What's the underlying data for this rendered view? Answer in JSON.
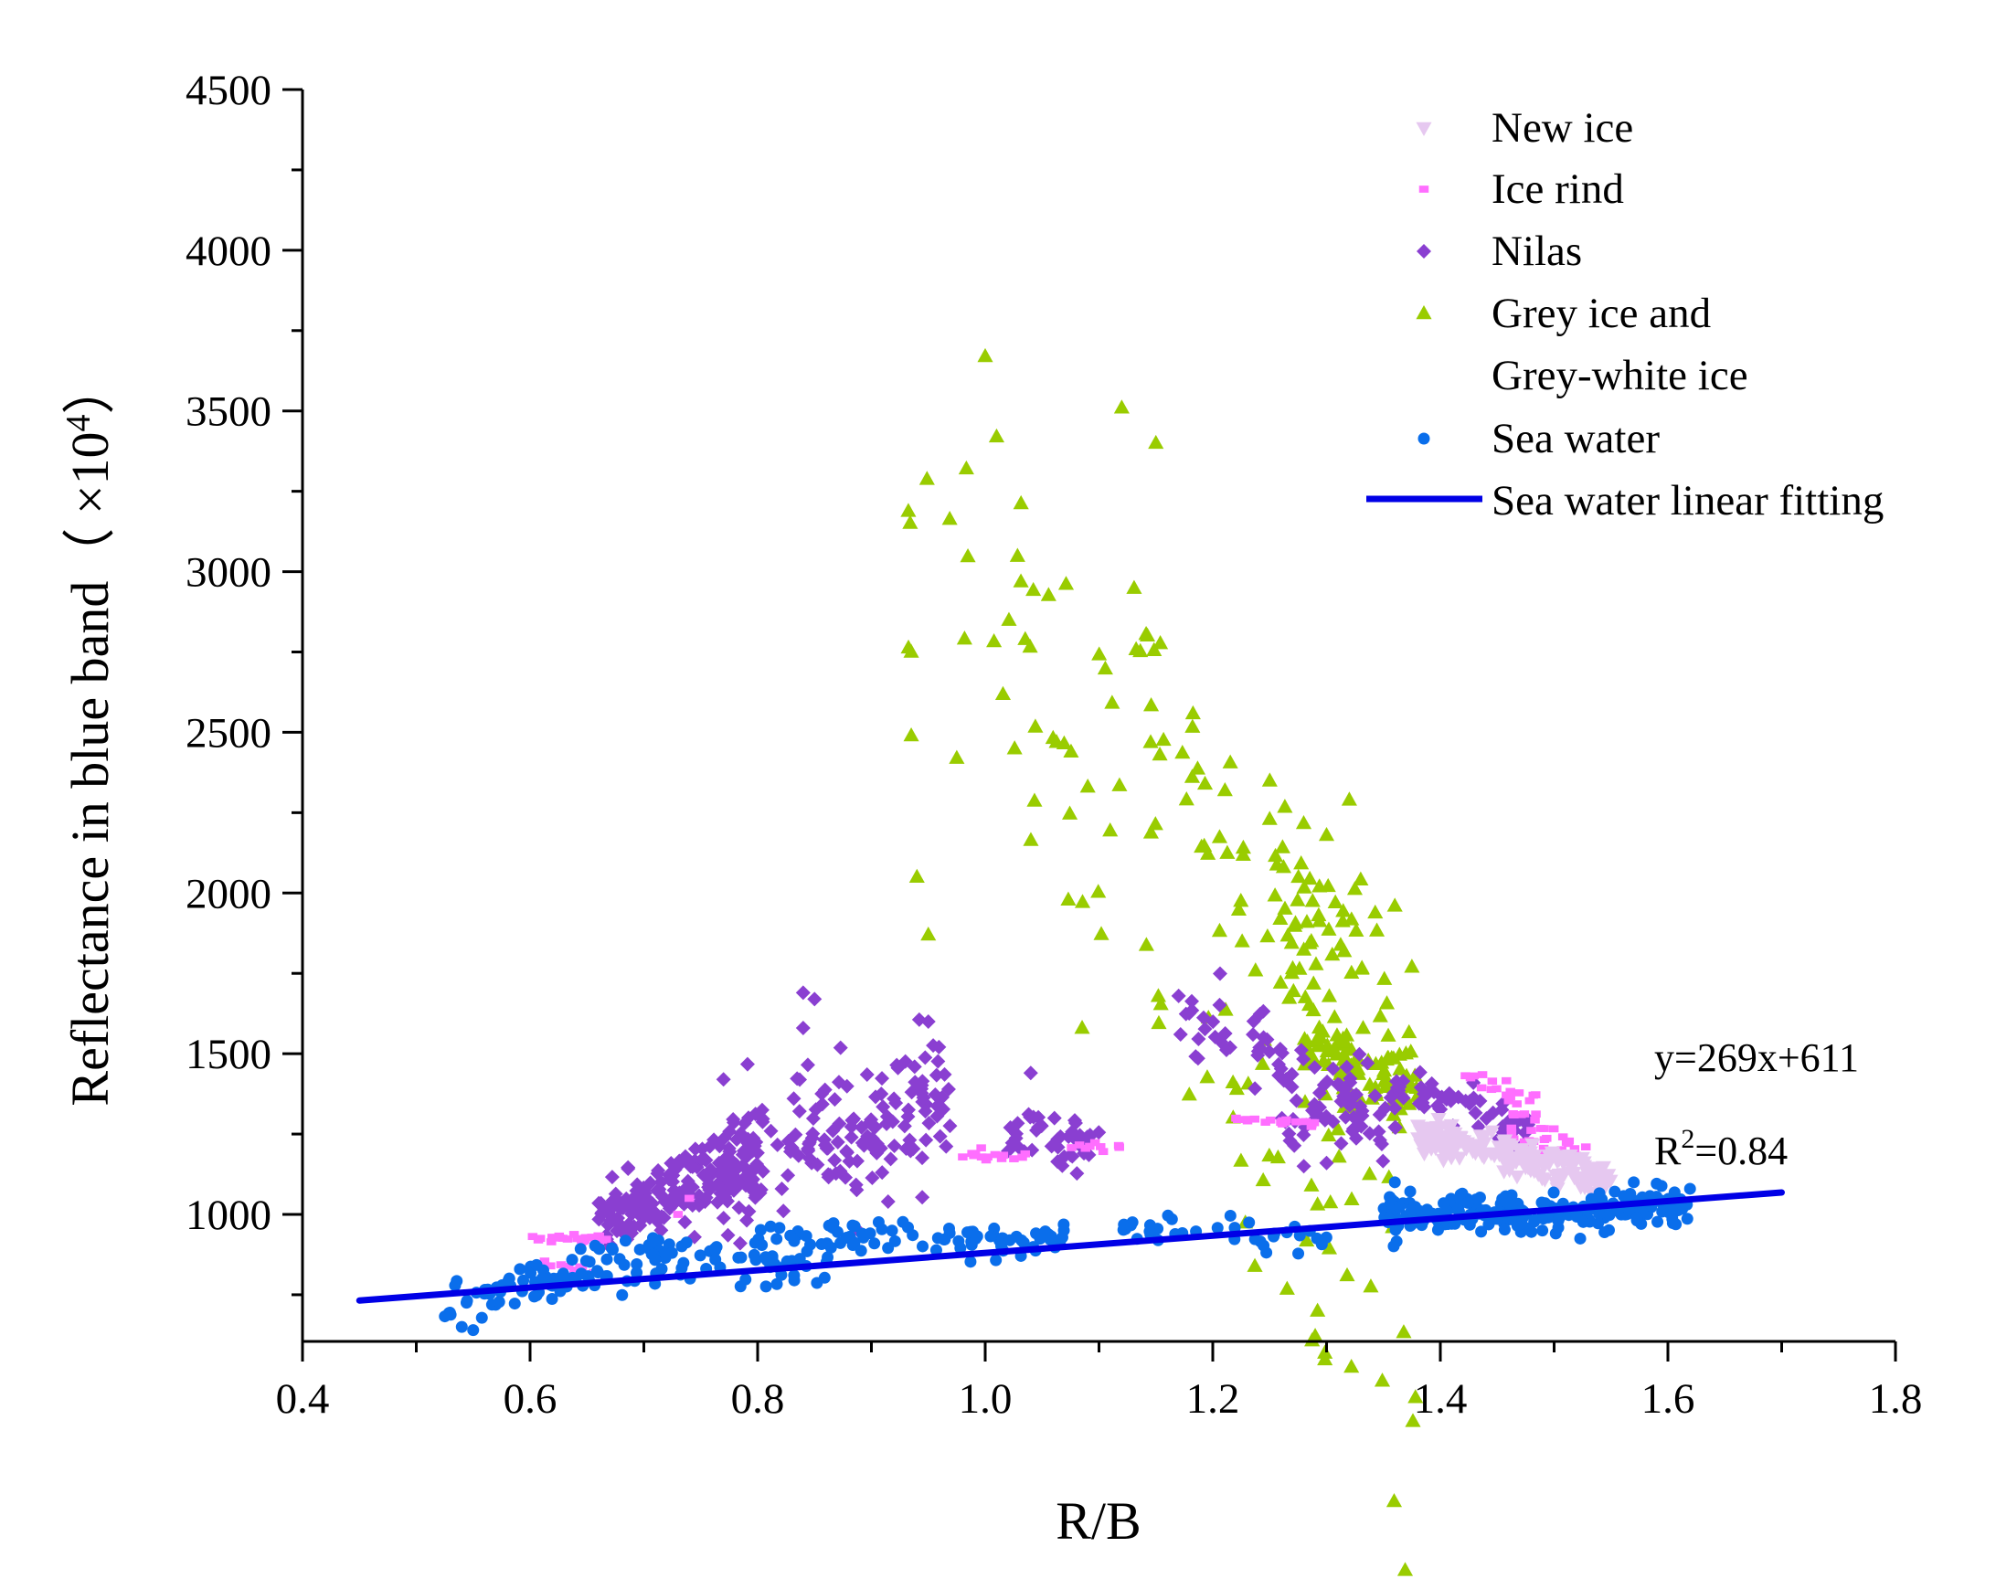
{
  "chart_data": {
    "type": "scatter",
    "title": "",
    "xlabel": "R/B",
    "ylabel": "Reflectance in blue band（ ×10",
    "ylabel_sup": "4",
    "ylabel_close": "）",
    "xlim": [
      0.4,
      1.8
    ],
    "ylim": [
      590,
      4500
    ],
    "xticks": [
      0.4,
      0.6,
      0.8,
      1.0,
      1.2,
      1.4,
      1.6,
      1.8
    ],
    "xtick_labels": [
      "0.4",
      "0.6",
      "0.8",
      "1.0",
      "1.2",
      "1.4",
      "1.6",
      "1.8"
    ],
    "yticks": [
      1000,
      1500,
      2000,
      2500,
      3000,
      3500,
      4000,
      4500
    ],
    "ytick_labels": [
      "1000",
      "1500",
      "2000",
      "2500",
      "3000",
      "3500",
      "4000",
      "4500"
    ],
    "legend_position": "top-right",
    "legend": [
      {
        "key": "new_ice",
        "label": "New ice",
        "label2": ""
      },
      {
        "key": "ice_rind",
        "label": "Ice rind",
        "label2": ""
      },
      {
        "key": "nilas",
        "label": "Nilas",
        "label2": ""
      },
      {
        "key": "grey_ice",
        "label": "Grey ice and",
        "label2": "Grey-white ice"
      },
      {
        "key": "sea_water",
        "label": "Sea water",
        "label2": ""
      },
      {
        "key": "fit",
        "label": "Sea water linear fitting",
        "label2": ""
      }
    ],
    "colors": {
      "new_ice": "#e6c8f0",
      "ice_rind": "#ff6eff",
      "nilas": "#8a3fd1",
      "grey_ice": "#99cc00",
      "sea_water": "#0a6eeb",
      "fit": "#0000e6"
    },
    "fit_line": {
      "slope": 269,
      "intercept": 611,
      "x_range": [
        0.45,
        1.7
      ]
    },
    "annotations": {
      "equation": "y=269x+611",
      "r2_prefix": "R",
      "r2_sup": "2",
      "r2_suffix": "=0.84"
    },
    "series": [
      {
        "key": "grey_ice",
        "name": "Grey ice and Grey-white ice",
        "marker": "triangle",
        "clusters": [
          {
            "x": [
              [
                0.93,
                0.97
              ],
              [
                1.38,
                1.26
              ]
            ],
            "n": 95,
            "sd": 320,
            "trend": [
              3300,
              -2750
            ]
          },
          {
            "x": [
              [
                1.13,
                1.12
              ],
              [
                1.33,
                1.26
              ]
            ],
            "n": 50,
            "sd": 120,
            "trend": [
              2700,
              -1300
            ]
          },
          {
            "x": [
              [
                1.28,
                1.28
              ],
              [
                1.38,
                1.38
              ]
            ],
            "n": 90,
            "sd": 60,
            "trend": [
              1560,
              -180
            ]
          },
          {
            "x": [
              [
                1.25,
                1.25
              ],
              [
                1.36,
                1.36
              ]
            ],
            "n": 45,
            "sd": 110,
            "trend": [
              2050,
              -300
            ]
          }
        ],
        "points": [
          [
            0.935,
            2750
          ],
          [
            0.935,
            2490
          ],
          [
            1.0,
            3670
          ],
          [
            0.95,
            1870
          ],
          [
            1.01,
            3420
          ],
          [
            1.12,
            3510
          ],
          [
            1.15,
            3400
          ],
          [
            0.94,
            2050
          ],
          [
            0.975,
            2420
          ],
          [
            1.25,
            2230
          ],
          [
            1.32,
            2290
          ],
          [
            1.375,
            1770
          ],
          [
            1.3,
            2180
          ],
          [
            1.36,
            1960
          ]
        ]
      },
      {
        "key": "nilas",
        "name": "Nilas",
        "marker": "diamond",
        "clusters": [
          {
            "x": [
              [
                0.66,
                0.66
              ],
              [
                0.8,
                0.8
              ]
            ],
            "n": 200,
            "sd": 55,
            "trend": [
              980,
              180
            ]
          },
          {
            "x": [
              [
                0.77,
                0.77
              ],
              [
                0.97,
                0.97
              ]
            ],
            "n": 170,
            "sd": 110,
            "trend": [
              1100,
              280
            ]
          },
          {
            "x": [
              [
                1.02,
                1.02
              ],
              [
                1.1,
                1.1
              ]
            ],
            "n": 45,
            "sd": 40,
            "trend": [
              1270,
              -60
            ]
          },
          {
            "x": [
              [
                1.17,
                1.17
              ],
              [
                1.37,
                1.37
              ]
            ],
            "n": 75,
            "sd": 60,
            "trend": [
              1620,
              -330
            ]
          },
          {
            "x": [
              [
                1.26,
                1.26
              ],
              [
                1.35,
                1.35
              ]
            ],
            "n": 30,
            "sd": 45,
            "trend": [
              1280,
              -20
            ]
          },
          {
            "x": [
              [
                1.35,
                1.35
              ],
              [
                1.48,
                1.48
              ]
            ],
            "n": 55,
            "sd": 35,
            "trend": [
              1430,
              -180
            ]
          }
        ],
        "points": [
          [
            0.84,
            1690
          ],
          [
            0.85,
            1670
          ],
          [
            0.84,
            1580
          ],
          [
            0.77,
            1420
          ],
          [
            0.95,
            1600
          ],
          [
            1.04,
            1440
          ],
          [
            1.17,
            1680
          ],
          [
            1.28,
            1150
          ],
          [
            1.3,
            1160
          ]
        ]
      },
      {
        "key": "ice_rind",
        "name": "Ice rind",
        "marker": "square",
        "clusters": [
          {
            "x": [
              [
                0.6,
                0.6
              ],
              [
                0.67,
                0.67
              ]
            ],
            "n": 24,
            "sd": 8,
            "trend": [
              925,
              0
            ]
          },
          {
            "x": [
              [
                0.61,
                0.61
              ],
              [
                0.66,
                0.66
              ]
            ],
            "n": 10,
            "sd": 10,
            "trend": [
              840,
              0
            ]
          },
          {
            "x": [
              [
                0.98,
                0.98
              ],
              [
                1.04,
                1.04
              ]
            ],
            "n": 14,
            "sd": 12,
            "trend": [
              1190,
              -20
            ]
          },
          {
            "x": [
              [
                1.07,
                1.07
              ],
              [
                1.12,
                1.12
              ]
            ],
            "n": 10,
            "sd": 8,
            "trend": [
              1210,
              0
            ]
          },
          {
            "x": [
              [
                1.21,
                1.21
              ],
              [
                1.29,
                1.29
              ]
            ],
            "n": 20,
            "sd": 6,
            "trend": [
              1295,
              -10
            ]
          },
          {
            "x": [
              [
                1.42,
                1.42
              ],
              [
                1.52,
                1.52
              ]
            ],
            "n": 32,
            "sd": 25,
            "trend": [
              1440,
              -200
            ]
          },
          {
            "x": [
              [
                1.45,
                1.45
              ],
              [
                1.53,
                1.53
              ]
            ],
            "n": 22,
            "sd": 25,
            "trend": [
              1260,
              -80
            ]
          }
        ],
        "points": [
          [
            0.74,
            1050
          ],
          [
            0.73,
            1000
          ]
        ]
      },
      {
        "key": "new_ice",
        "name": "New ice",
        "marker": "triangle-down",
        "clusters": [
          {
            "x": [
              [
                1.38,
                1.38
              ],
              [
                1.55,
                1.55
              ]
            ],
            "n": 170,
            "sd": 30,
            "trend": [
              1250,
              -150
            ]
          }
        ],
        "points": []
      },
      {
        "key": "sea_water",
        "name": "Sea water",
        "marker": "circle",
        "clusters": [
          {
            "x": [
              [
                0.52,
                0.52
              ],
              [
                0.72,
                0.72
              ]
            ],
            "n": 85,
            "sd": 35,
            "trend": [
              720,
              150
            ]
          },
          {
            "x": [
              [
                0.7,
                0.7
              ],
              [
                0.87,
                0.87
              ]
            ],
            "n": 50,
            "sd": 35,
            "trend": [
              880,
              -60
            ]
          },
          {
            "x": [
              [
                0.8,
                0.8
              ],
              [
                1.07,
                1.07
              ]
            ],
            "n": 90,
            "sd": 25,
            "trend": [
              925,
              -10
            ]
          },
          {
            "x": [
              [
                1.12,
                1.12
              ],
              [
                1.3,
                1.3
              ]
            ],
            "n": 35,
            "sd": 25,
            "trend": [
              965,
              -40
            ]
          },
          {
            "x": [
              [
                1.35,
                1.35
              ],
              [
                1.62,
                1.62
              ]
            ],
            "n": 230,
            "sd": 30,
            "trend": [
              1000,
              20
            ]
          }
        ],
        "points": [
          [
            0.54,
            650
          ],
          [
            0.55,
            640
          ],
          [
            1.36,
            1100
          ],
          [
            1.57,
            1100
          ]
        ]
      }
    ]
  }
}
